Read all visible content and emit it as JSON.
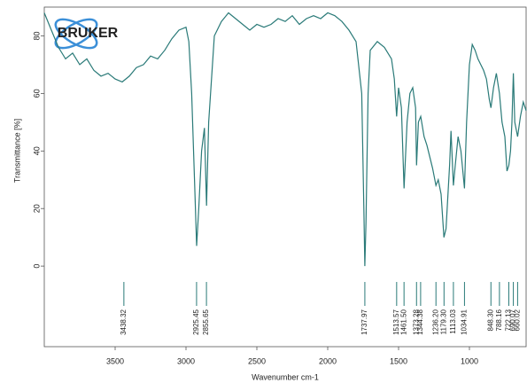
{
  "chart_data": {
    "type": "line",
    "logo": "BRUKER",
    "xlabel": "Wavenumber cm-1",
    "ylabel": "Transmittance [%]",
    "xlim": [
      4000,
      600
    ],
    "ylim": [
      -28,
      90
    ],
    "xticks": [
      3500,
      3000,
      2500,
      2000,
      1500,
      1000
    ],
    "yticks": [
      0,
      20,
      40,
      60,
      80
    ],
    "peaks": [
      3438.32,
      2925.45,
      2855.65,
      1737.97,
      1513.57,
      {
        "value": 1461.5,
        "label": "1461.50"
      },
      1373.28,
      1344.38,
      {
        "value": 1236.2,
        "label": "1236.20"
      },
      {
        "value": 1179.3,
        "label": "1179.30"
      },
      1113.03,
      1034.91,
      {
        "value": 848.3,
        "label": "848.30"
      },
      788.16,
      722.13,
      690.07,
      660.02
    ],
    "series": [
      {
        "color": "#2a7a78",
        "x": [
          4000,
          3950,
          3900,
          3850,
          3800,
          3750,
          3700,
          3650,
          3600,
          3550,
          3500,
          3450,
          3400,
          3350,
          3300,
          3250,
          3200,
          3150,
          3100,
          3050,
          3000,
          2980,
          2960,
          2940,
          2925,
          2910,
          2890,
          2870,
          2855,
          2840,
          2800,
          2750,
          2700,
          2650,
          2600,
          2550,
          2500,
          2450,
          2400,
          2350,
          2300,
          2250,
          2200,
          2150,
          2100,
          2050,
          2000,
          1950,
          1900,
          1850,
          1800,
          1760,
          1745,
          1738,
          1730,
          1715,
          1700,
          1650,
          1600,
          1550,
          1530,
          1514,
          1500,
          1480,
          1461,
          1440,
          1420,
          1400,
          1380,
          1373,
          1360,
          1344,
          1320,
          1300,
          1280,
          1260,
          1236,
          1220,
          1200,
          1180,
          1165,
          1140,
          1130,
          1113,
          1100,
          1080,
          1060,
          1035,
          1020,
          1000,
          980,
          960,
          940,
          920,
          900,
          880,
          860,
          848,
          830,
          810,
          788,
          770,
          750,
          735,
          722,
          710,
          700,
          690,
          680,
          660,
          640,
          620,
          600
        ],
        "values": [
          88,
          82,
          76,
          72,
          74,
          70,
          72,
          68,
          66,
          67,
          65,
          64,
          66,
          69,
          70,
          73,
          72,
          75,
          79,
          82,
          83,
          78,
          60,
          30,
          7,
          20,
          40,
          48,
          21,
          50,
          80,
          85,
          88,
          86,
          84,
          82,
          84,
          83,
          84,
          86,
          85,
          87,
          84,
          86,
          87,
          86,
          88,
          87,
          85,
          82,
          78,
          60,
          20,
          0,
          15,
          60,
          75,
          78,
          76,
          72,
          65,
          52,
          62,
          55,
          27,
          50,
          60,
          62,
          55,
          35,
          50,
          52,
          45,
          42,
          38,
          34,
          28,
          30,
          25,
          10,
          13,
          35,
          47,
          28,
          35,
          45,
          40,
          27,
          50,
          70,
          77,
          75,
          72,
          70,
          68,
          65,
          58,
          55,
          62,
          67,
          60,
          50,
          45,
          33,
          35,
          40,
          50,
          67,
          50,
          45,
          52,
          57,
          54
        ]
      }
    ]
  }
}
